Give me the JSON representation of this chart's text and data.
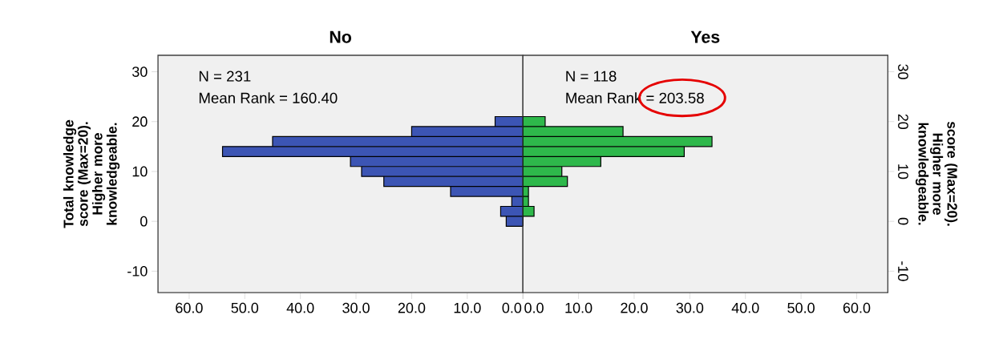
{
  "chart_data": [
    {
      "type": "histogram",
      "orientation": "horizontal",
      "title": "No",
      "ylabel": "Total knowledge score (Max=20). Higher more knowledgeable.",
      "bins": [
        -1,
        1,
        3,
        5,
        7,
        9,
        11,
        13,
        15,
        17,
        19,
        21
      ],
      "values": [
        3,
        4,
        2,
        13,
        25,
        29,
        31,
        54,
        45,
        20,
        5
      ],
      "color": "#3c55b4",
      "xlim": [
        65.6,
        0
      ],
      "xticks": [
        {
          "value": 60,
          "label": "60.0"
        },
        {
          "value": 50,
          "label": "50.0"
        },
        {
          "value": 40,
          "label": "40.0"
        },
        {
          "value": 30,
          "label": "30.0"
        },
        {
          "value": 20,
          "label": "20.0"
        },
        {
          "value": 10,
          "label": "10.0"
        },
        {
          "value": 0,
          "label": "0.0"
        }
      ],
      "ylim": [
        -14.3,
        33.3
      ],
      "yticks": [
        -10,
        0,
        10,
        20,
        30
      ],
      "annotations": [
        "N = 231",
        "Mean Rank = 160.40"
      ]
    },
    {
      "type": "histogram",
      "orientation": "horizontal",
      "title": "Yes",
      "ylabel": "score (Max=20). Higher more knowledgeable.",
      "bins": [
        -1,
        1,
        3,
        5,
        7,
        9,
        11,
        13,
        15,
        17,
        19,
        21
      ],
      "values": [
        0,
        2,
        1,
        1,
        8,
        7,
        14,
        29,
        34,
        18,
        4
      ],
      "color": "#2eb84b",
      "xlim": [
        0,
        65.6
      ],
      "xticks": [
        {
          "value": 0,
          "label": "0.0"
        },
        {
          "value": 10,
          "label": "10.0"
        },
        {
          "value": 20,
          "label": "20.0"
        },
        {
          "value": 30,
          "label": "30.0"
        },
        {
          "value": 40,
          "label": "40.0"
        },
        {
          "value": 50,
          "label": "50.0"
        },
        {
          "value": 60,
          "label": "60.0"
        }
      ],
      "ylim": [
        -14.3,
        33.3
      ],
      "yticks": [
        -10,
        0,
        10,
        20,
        30
      ],
      "annotations": [
        "N = 118",
        "Mean Rank = 203.58"
      ]
    }
  ]
}
